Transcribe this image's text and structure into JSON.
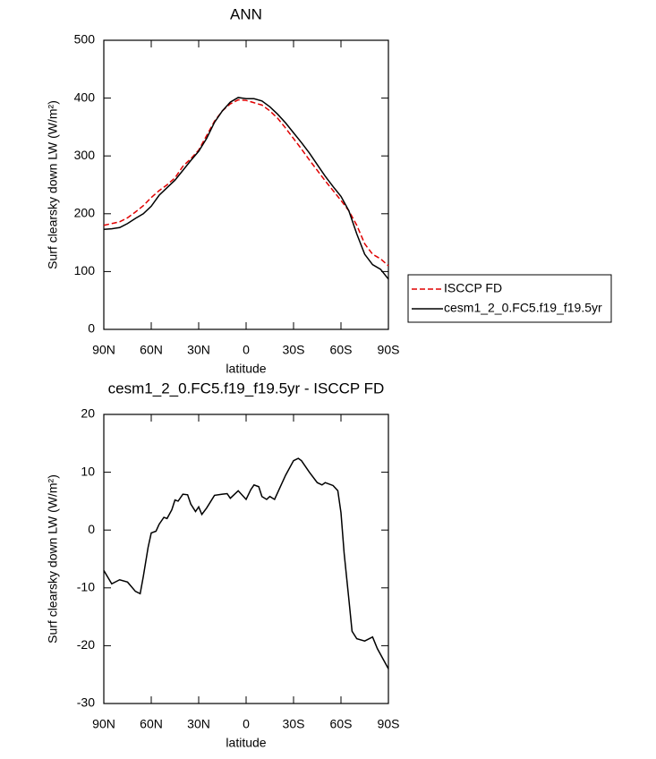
{
  "chart_data": [
    {
      "type": "line",
      "title": "ANN",
      "xlabel": "latitude",
      "ylabel": "Surf clearsky down LW (W/m²)",
      "x": [
        90,
        85,
        80,
        75,
        70,
        65,
        60,
        55,
        50,
        45,
        40,
        35,
        30,
        25,
        20,
        15,
        10,
        5,
        0,
        -5,
        -10,
        -15,
        -20,
        -25,
        -30,
        -35,
        -40,
        -45,
        -50,
        -55,
        -60,
        -65,
        -70,
        -75,
        -80,
        -85,
        -90
      ],
      "series": [
        {
          "name": "ISCCP FD",
          "color": "#e00000",
          "dash": true,
          "values": [
            180,
            183,
            186,
            193,
            203,
            214,
            228,
            240,
            250,
            262,
            282,
            295,
            310,
            335,
            360,
            378,
            390,
            397,
            396,
            392,
            388,
            378,
            365,
            348,
            330,
            312,
            293,
            275,
            257,
            240,
            223,
            205,
            180,
            148,
            130,
            122,
            110
          ]
        },
        {
          "name": "cesm1_2_0.FC5.f19_f19.5yr",
          "color": "#000000",
          "dash": false,
          "values": [
            173,
            174,
            176,
            183,
            192,
            200,
            213,
            232,
            245,
            258,
            275,
            292,
            308,
            330,
            358,
            378,
            393,
            401,
            399,
            399,
            395,
            385,
            372,
            357,
            340,
            323,
            305,
            285,
            265,
            247,
            230,
            205,
            165,
            130,
            112,
            104,
            87
          ]
        }
      ],
      "xlim": [
        90,
        -90
      ],
      "xticks": [
        {
          "value": 90,
          "label": "90N"
        },
        {
          "value": 60,
          "label": "60N"
        },
        {
          "value": 30,
          "label": "30N"
        },
        0,
        {
          "value": -30,
          "label": "30S"
        },
        {
          "value": -60,
          "label": "60S"
        },
        {
          "value": -90,
          "label": "90S"
        }
      ],
      "ylim": [
        0,
        500
      ],
      "yticks": [
        0,
        100,
        200,
        300,
        400,
        500
      ],
      "legend": "right"
    },
    {
      "type": "line",
      "title": "cesm1_2_0.FC5.f19_f19.5yr - ISCCP FD",
      "xlabel": "latitude",
      "ylabel": "Surf clearsky down LW (W/m²)",
      "x": [
        90,
        85,
        80,
        75,
        70,
        67,
        65,
        62,
        60,
        57,
        55,
        52,
        50,
        47,
        45,
        43,
        40,
        37,
        35,
        32,
        30,
        28,
        25,
        20,
        15,
        12,
        10,
        5,
        0,
        -3,
        -5,
        -8,
        -10,
        -13,
        -15,
        -18,
        -20,
        -25,
        -30,
        -33,
        -35,
        -40,
        -45,
        -48,
        -50,
        -55,
        -58,
        -60,
        -62,
        -65,
        -67,
        -70,
        -75,
        -80,
        -83,
        -90
      ],
      "series": [
        {
          "color": "#000000",
          "dash": false,
          "values": [
            -7,
            -9.3,
            -8.6,
            -9,
            -10.6,
            -11,
            -8,
            -3,
            -0.5,
            -0.2,
            1,
            2.2,
            2,
            3.5,
            5.2,
            5,
            6.2,
            6.1,
            4.5,
            3.2,
            4,
            2.7,
            3.8,
            6,
            6.2,
            6.3,
            5.5,
            6.8,
            5.3,
            7,
            7.8,
            7.5,
            5.8,
            5.3,
            5.8,
            5.3,
            6.5,
            9.5,
            12,
            12.4,
            12,
            10,
            8.2,
            7.8,
            8.2,
            7.7,
            6.8,
            3,
            -4,
            -12,
            -17.5,
            -18.8,
            -19.2,
            -18.5,
            -20.5,
            -24
          ]
        }
      ],
      "xlim": [
        90,
        -90
      ],
      "xticks": [
        {
          "value": 90,
          "label": "90N"
        },
        {
          "value": 60,
          "label": "60N"
        },
        {
          "value": 30,
          "label": "30N"
        },
        0,
        {
          "value": -30,
          "label": "30S"
        },
        {
          "value": -60,
          "label": "60S"
        },
        {
          "value": -90,
          "label": "90S"
        }
      ],
      "ylim": [
        -30,
        20
      ],
      "yticks": [
        -30,
        -20,
        -10,
        0,
        10,
        20
      ]
    }
  ]
}
